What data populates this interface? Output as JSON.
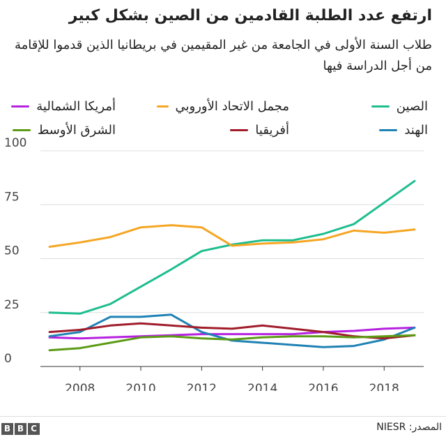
{
  "title": "ارتفع عدد الطلبة القادمين من الصين بشكل كبير",
  "subtitle": "طلاب السنة الأولى في الجامعة من غير المقيمين في بريطانيا الذين قدموا للإقامة من أجل الدراسة فيها",
  "source": "المصدر: NIESR",
  "logo": "BBC",
  "chart_data": {
    "type": "line",
    "x": [
      2007,
      2008,
      2009,
      2010,
      2011,
      2012,
      2013,
      2014,
      2015,
      2016,
      2017,
      2018,
      2019
    ],
    "x_ticks": [
      2008,
      2010,
      2012,
      2014,
      2016,
      2018
    ],
    "y_ticks": [
      0,
      25,
      50,
      75,
      100
    ],
    "xlim": [
      2006.7,
      2019.3
    ],
    "ylim": [
      0,
      100
    ],
    "grid": true,
    "legend_position": "top",
    "series": [
      {
        "name": "الصين",
        "color": "#1dbd8e",
        "values": [
          25,
          24.5,
          29,
          37,
          45,
          53.5,
          56.5,
          58.5,
          58.5,
          61.5,
          66,
          76,
          86
        ]
      },
      {
        "name": "مجمل الاتحاد الأوروبي",
        "color": "#f5a623",
        "values": [
          55.5,
          57.5,
          60,
          64.5,
          65.5,
          64.5,
          56,
          57,
          57.5,
          59,
          63,
          62,
          63.5
        ]
      },
      {
        "name": "أمريكا الشمالية",
        "color": "#b620e0",
        "values": [
          13.5,
          13,
          13.5,
          14,
          14.5,
          15,
          15,
          15,
          15,
          16,
          16.5,
          17.5,
          18
        ]
      },
      {
        "name": "الهند",
        "color": "#1f82b4",
        "values": [
          14,
          16,
          23,
          23,
          24,
          16,
          12,
          11,
          10,
          9,
          9.5,
          12.5,
          18
        ]
      },
      {
        "name": "أفريقيا",
        "color": "#a01c2b",
        "values": [
          16,
          17,
          19,
          20,
          19,
          18,
          17.5,
          19,
          17.5,
          16,
          14,
          13,
          14.5
        ]
      },
      {
        "name": "الشرق الأوسط",
        "color": "#5b9b15",
        "values": [
          7.5,
          8.5,
          11,
          13.5,
          14,
          13,
          12.5,
          13.5,
          14,
          14,
          13.5,
          14,
          14.5
        ]
      }
    ]
  }
}
